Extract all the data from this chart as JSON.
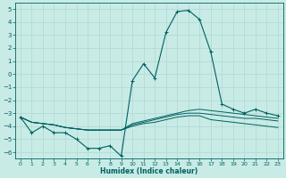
{
  "xlabel": "Humidex (Indice chaleur)",
  "background_color": "#c8ebe6",
  "grid_color": "#b0d8d4",
  "line_color": "#006060",
  "xlim": [
    -0.5,
    23.5
  ],
  "ylim": [
    -6.5,
    5.5
  ],
  "xticks": [
    0,
    1,
    2,
    3,
    4,
    5,
    6,
    7,
    8,
    9,
    10,
    11,
    12,
    13,
    14,
    15,
    16,
    17,
    18,
    19,
    20,
    21,
    22,
    23
  ],
  "yticks": [
    -6,
    -5,
    -4,
    -3,
    -2,
    -1,
    0,
    1,
    2,
    3,
    4,
    5
  ],
  "series": [
    {
      "x": [
        0,
        1,
        2,
        3,
        4,
        5,
        6,
        7,
        8,
        9,
        10,
        11,
        12,
        13,
        14,
        15,
        16,
        17,
        18,
        19,
        20,
        21,
        22,
        23
      ],
      "y": [
        -3.3,
        -4.5,
        -4.0,
        -4.5,
        -4.5,
        -5.0,
        -5.7,
        -5.7,
        -5.5,
        -6.3,
        -0.5,
        0.8,
        -0.3,
        3.2,
        4.8,
        4.9,
        4.2,
        1.7,
        -2.3,
        -2.7,
        -3.0,
        -2.7,
        -3.0,
        -3.2
      ],
      "marker": true
    },
    {
      "x": [
        0,
        1,
        2,
        3,
        4,
        5,
        6,
        7,
        8,
        9,
        10,
        11,
        12,
        13,
        14,
        15,
        16,
        17,
        18,
        19,
        20,
        21,
        22,
        23
      ],
      "y": [
        -3.3,
        -3.7,
        -3.8,
        -3.9,
        -4.1,
        -4.2,
        -4.3,
        -4.3,
        -4.3,
        -4.3,
        -4.0,
        -3.8,
        -3.7,
        -3.5,
        -3.3,
        -3.2,
        -3.2,
        -3.5,
        -3.6,
        -3.7,
        -3.8,
        -3.9,
        -4.0,
        -4.1
      ],
      "marker": false
    },
    {
      "x": [
        0,
        1,
        2,
        3,
        4,
        5,
        6,
        7,
        8,
        9,
        10,
        11,
        12,
        13,
        14,
        15,
        16,
        17,
        18,
        19,
        20,
        21,
        22,
        23
      ],
      "y": [
        -3.3,
        -3.7,
        -3.8,
        -3.9,
        -4.1,
        -4.2,
        -4.3,
        -4.3,
        -4.3,
        -4.3,
        -3.9,
        -3.7,
        -3.5,
        -3.3,
        -3.1,
        -3.0,
        -3.0,
        -3.1,
        -3.2,
        -3.3,
        -3.4,
        -3.4,
        -3.5,
        -3.6
      ],
      "marker": false
    },
    {
      "x": [
        0,
        1,
        2,
        3,
        4,
        5,
        6,
        7,
        8,
        9,
        10,
        11,
        12,
        13,
        14,
        15,
        16,
        17,
        18,
        19,
        20,
        21,
        22,
        23
      ],
      "y": [
        -3.3,
        -3.7,
        -3.8,
        -3.9,
        -4.1,
        -4.2,
        -4.3,
        -4.3,
        -4.3,
        -4.3,
        -3.8,
        -3.6,
        -3.4,
        -3.2,
        -3.0,
        -2.8,
        -2.7,
        -2.8,
        -2.9,
        -3.0,
        -3.1,
        -3.2,
        -3.3,
        -3.4
      ],
      "marker": false
    }
  ]
}
